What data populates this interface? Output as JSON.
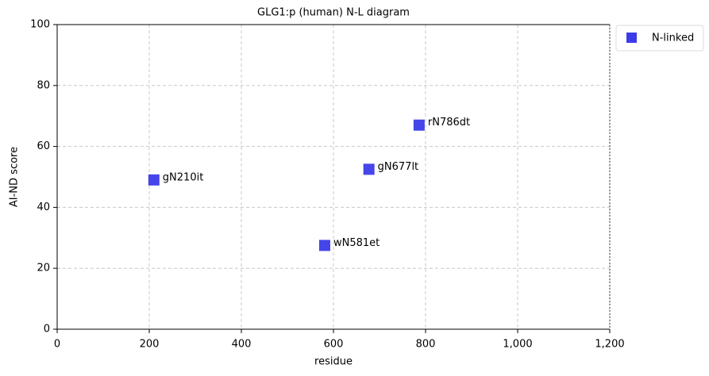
{
  "chart_data": {
    "type": "scatter",
    "title": "GLG1:p (human) N-L diagram",
    "x_label": "residue",
    "y_label": "AI-ND score",
    "x": [
      210,
      581,
      677,
      786
    ],
    "series": [
      {
        "name": "N-linked",
        "color": "#3b3be8",
        "values": [
          49,
          27.5,
          52.5,
          67
        ]
      }
    ],
    "point_labels": [
      "gN210it",
      "wN581et",
      "gN677lt",
      "rN786dt"
    ],
    "xlim": [
      0,
      1200
    ],
    "ylim": [
      0,
      100
    ],
    "xticks": [
      0,
      200,
      400,
      600,
      800,
      {
        "value": 1000,
        "label": "1,000"
      },
      {
        "value": 1200,
        "label": "1,200"
      }
    ],
    "yticks": [
      0,
      20,
      40,
      60,
      80,
      100
    ],
    "grid": true,
    "legend": "outside upper right"
  }
}
